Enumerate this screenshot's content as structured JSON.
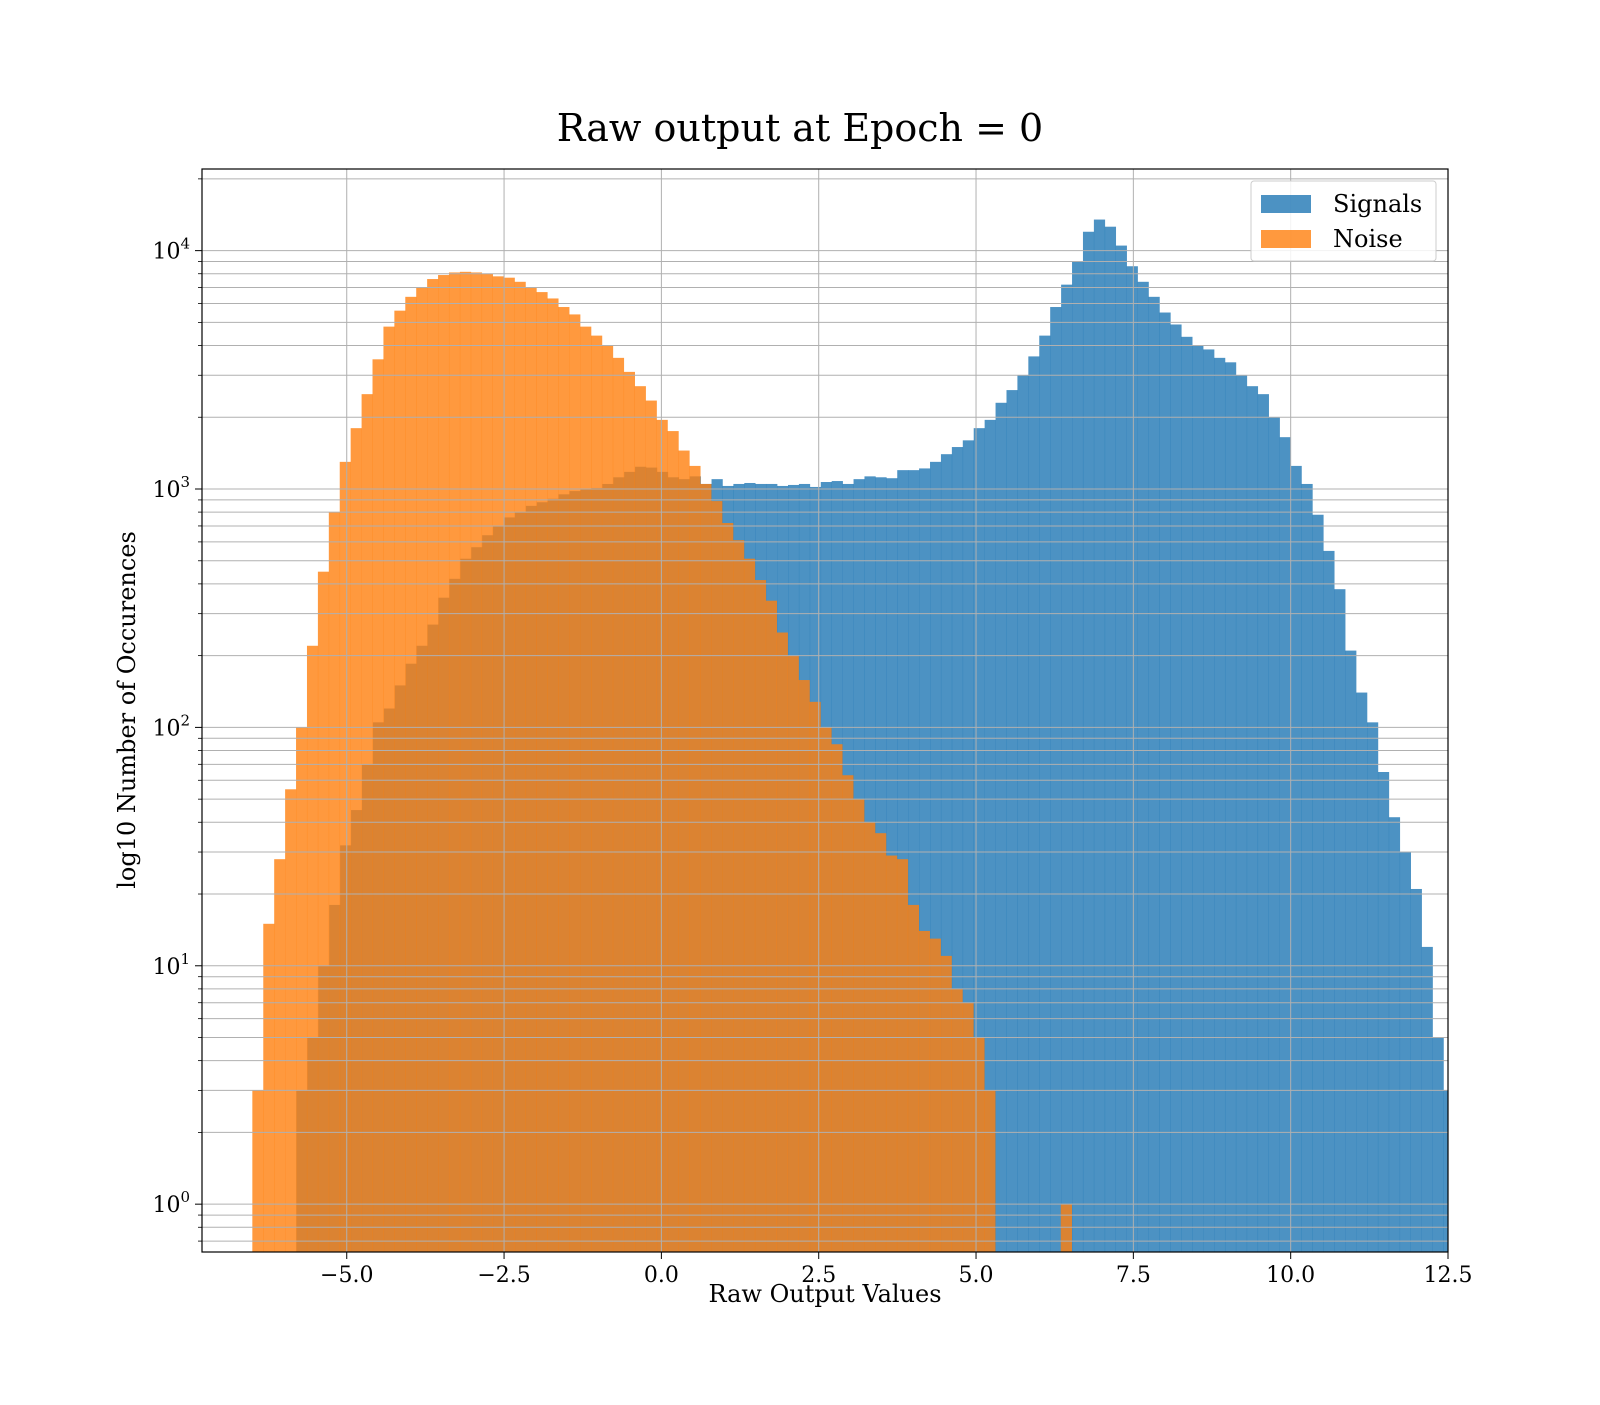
{
  "chart_data": {
    "type": "bar",
    "title": "Raw output at Epoch = 0",
    "xlabel": "Raw Output Values",
    "ylabel": "log10 Number of Occurences",
    "xlim": [
      -7.3,
      12.5
    ],
    "ylim": [
      0.63,
      22000
    ],
    "y_scale": "log",
    "grid": true,
    "legend_position": "top-right",
    "x_ticks": [
      {
        "value": -5.0,
        "label": "−5.0"
      },
      {
        "value": -2.5,
        "label": "−2.5"
      },
      {
        "value": 0.0,
        "label": "0.0"
      },
      {
        "value": 2.5,
        "label": "2.5"
      },
      {
        "value": 5.0,
        "label": "5.0"
      },
      {
        "value": 7.5,
        "label": "7.5"
      },
      {
        "value": 10.0,
        "label": "10.0"
      },
      {
        "value": 12.5,
        "label": "12.5"
      }
    ],
    "y_ticks": [
      {
        "value": 1,
        "base": "10",
        "exp": "0"
      },
      {
        "value": 10,
        "base": "10",
        "exp": "1"
      },
      {
        "value": 100,
        "base": "10",
        "exp": "2"
      },
      {
        "value": 1000,
        "base": "10",
        "exp": "3"
      },
      {
        "value": 10000,
        "base": "10",
        "exp": "4"
      }
    ],
    "series": [
      {
        "name": "Signals",
        "color": "#1f77b4",
        "alpha": 0.8,
        "bin_start": -5.8,
        "bin_width": 0.1736,
        "values": [
          3,
          5,
          10,
          18,
          32,
          45,
          70,
          105,
          120,
          150,
          185,
          220,
          270,
          350,
          420,
          510,
          570,
          640,
          700,
          760,
          800,
          850,
          880,
          910,
          950,
          980,
          1000,
          1010,
          1050,
          1120,
          1180,
          1240,
          1230,
          1180,
          1120,
          1100,
          1130,
          1050,
          1100,
          1030,
          1050,
          1060,
          1050,
          1050,
          1030,
          1040,
          1050,
          1020,
          1070,
          1080,
          1050,
          1100,
          1130,
          1120,
          1110,
          1200,
          1200,
          1220,
          1300,
          1400,
          1500,
          1600,
          1800,
          1950,
          2300,
          2600,
          3000,
          3600,
          4400,
          5800,
          7200,
          9000,
          12000,
          13500,
          12600,
          10500,
          8600,
          7400,
          6400,
          5500,
          4900,
          4350,
          4000,
          3850,
          3550,
          3400,
          3000,
          2700,
          2500,
          2000,
          1650,
          1250,
          1050,
          780,
          550,
          380,
          210,
          140,
          105,
          65,
          42,
          30,
          21,
          12,
          5,
          3
        ]
      },
      {
        "name": "Noise",
        "color": "#ff7f0e",
        "alpha": 0.8,
        "bin_start": -6.5,
        "bin_width": 0.1736,
        "values": [
          3,
          15,
          28,
          55,
          100,
          220,
          450,
          800,
          1300,
          1800,
          2500,
          3500,
          4800,
          5600,
          6400,
          7000,
          7600,
          7900,
          8100,
          8150,
          8100,
          8000,
          7800,
          7700,
          7400,
          7000,
          6700,
          6300,
          5800,
          5400,
          4800,
          4400,
          4000,
          3550,
          3100,
          2700,
          2350,
          1950,
          1750,
          1450,
          1250,
          1050,
          890,
          720,
          610,
          510,
          415,
          340,
          250,
          200,
          158,
          128,
          100,
          85,
          63,
          50,
          40,
          36,
          29,
          28,
          18,
          14,
          13,
          11,
          8,
          7,
          5,
          3,
          0,
          0,
          0,
          0,
          0,
          0,
          1,
          0,
          0,
          0
        ]
      }
    ]
  }
}
